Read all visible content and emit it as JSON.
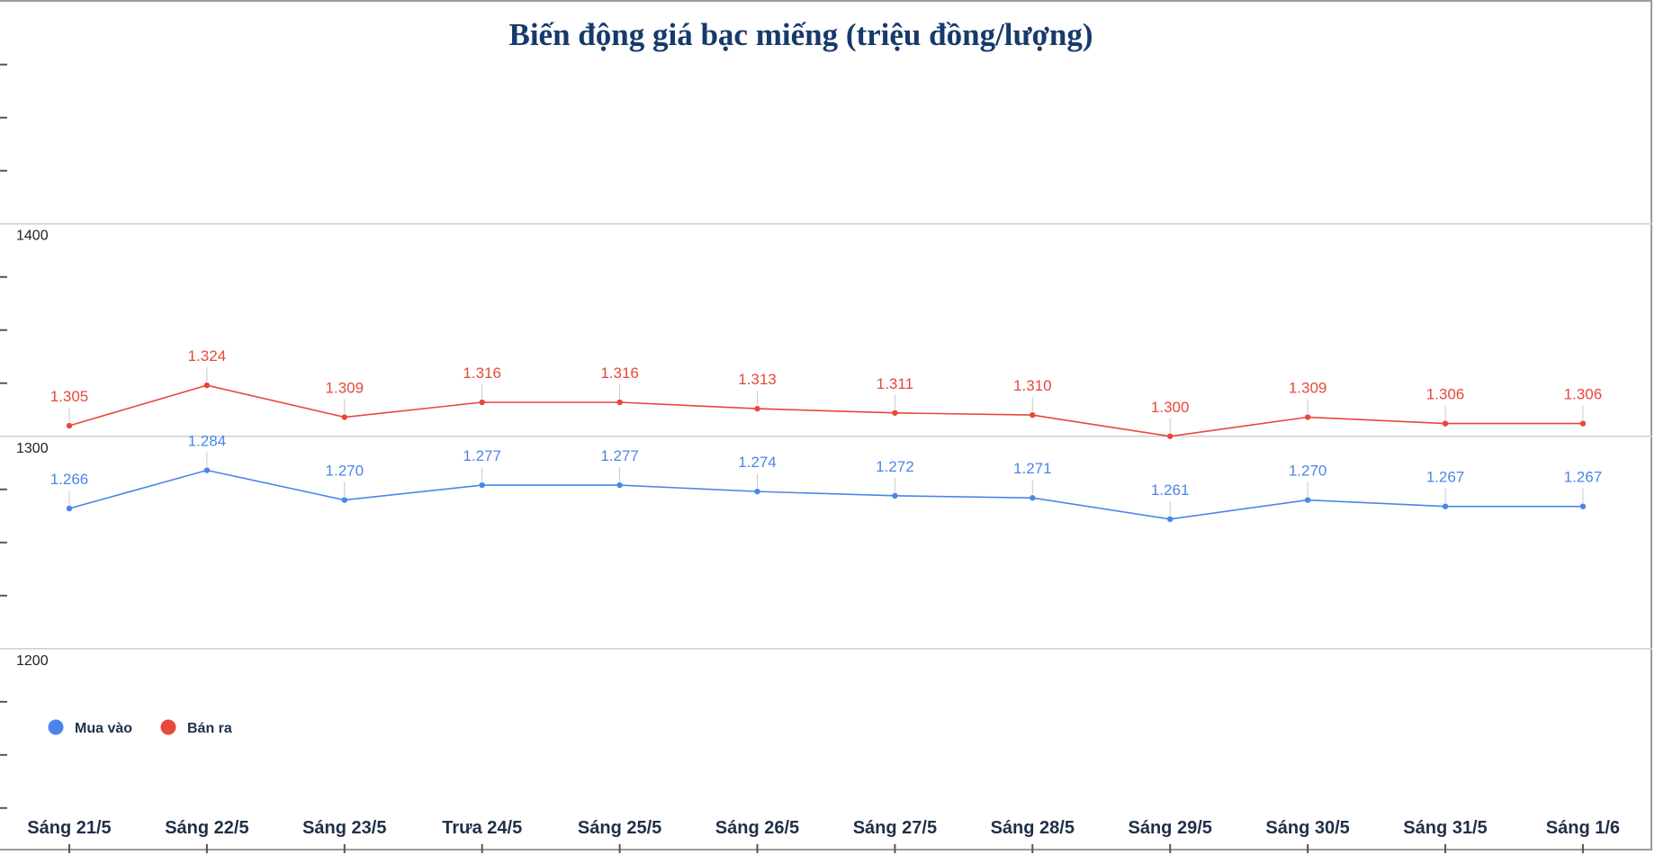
{
  "chart_data": {
    "type": "line",
    "title": "Biến động giá bạc miếng (triệu đồng/lượng)",
    "xlabel": "",
    "ylabel": "",
    "categories": [
      "Sáng 21/5",
      "Sáng 22/5",
      "Sáng 23/5",
      "Trưa 24/5",
      "Sáng 25/5",
      "Sáng 26/5",
      "Sáng 27/5",
      "Sáng 28/5",
      "Sáng 29/5",
      "Sáng 30/5",
      "Sáng 31/5",
      "Sáng 1/6"
    ],
    "series": [
      {
        "name": "Mua vào",
        "color": "#4a86e8",
        "values": [
          1266,
          1284,
          1270,
          1277,
          1277,
          1274,
          1272,
          1271,
          1261,
          1270,
          1267,
          1267
        ],
        "labels": [
          "1.266",
          "1.284",
          "1.270",
          "1.277",
          "1.277",
          "1.274",
          "1.272",
          "1.271",
          "1.261",
          "1.270",
          "1.267",
          "1.267"
        ]
      },
      {
        "name": "Bán ra",
        "color": "#e8473b",
        "values": [
          1305,
          1324,
          1309,
          1316,
          1316,
          1313,
          1311,
          1310,
          1300,
          1309,
          1306,
          1306
        ],
        "labels": [
          "1.305",
          "1.324",
          "1.309",
          "1.316",
          "1.316",
          "1.313",
          "1.311",
          "1.310",
          "1.300",
          "1.309",
          "1.306",
          "1.306"
        ]
      }
    ],
    "yticks": [
      1200,
      1300,
      1400
    ],
    "ylim": [
      1105,
      1502
    ],
    "grid": true,
    "legend": "bottom-left",
    "title_color": "#163a6b"
  }
}
